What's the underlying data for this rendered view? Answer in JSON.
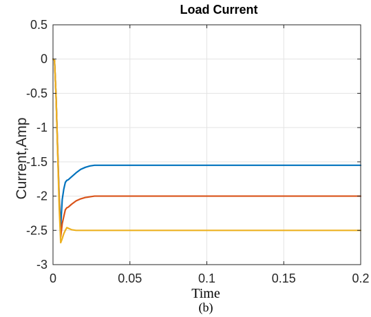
{
  "chart_data": {
    "type": "line",
    "title": "Load Current",
    "xlabel": "Time",
    "ylabel": "Current,Amp",
    "caption": "(b)",
    "xlim": [
      0,
      0.2
    ],
    "ylim": [
      -3,
      0.5
    ],
    "xticks": [
      0,
      0.05,
      0.1,
      0.15,
      0.2
    ],
    "xtick_labels": [
      "0",
      "0.05",
      "0.1",
      "0.15",
      "0.2"
    ],
    "yticks": [
      0.5,
      0,
      -0.5,
      -1,
      -1.5,
      -2,
      -2.5,
      -3
    ],
    "ytick_labels": [
      "0.5",
      "0",
      "-0.5",
      "-1",
      "-1.5",
      "-2",
      "-2.5",
      "-3"
    ],
    "grid": true,
    "series": [
      {
        "color": "#0072BD",
        "x": [
          0,
          0.001,
          0.002,
          0.003,
          0.004,
          0.005,
          0.006,
          0.007,
          0.008,
          0.009,
          0.01,
          0.012,
          0.015,
          0.018,
          0.021,
          0.024,
          0.027,
          0.03,
          0.05,
          0.1,
          0.15,
          0.2
        ],
        "y": [
          0,
          -0.02,
          -0.55,
          -1.3,
          -2.0,
          -2.45,
          -2.05,
          -1.9,
          -1.8,
          -1.77,
          -1.76,
          -1.72,
          -1.66,
          -1.61,
          -1.58,
          -1.56,
          -1.55,
          -1.55,
          -1.55,
          -1.55,
          -1.55,
          -1.55
        ]
      },
      {
        "color": "#D95319",
        "x": [
          0,
          0.001,
          0.002,
          0.003,
          0.004,
          0.005,
          0.006,
          0.007,
          0.008,
          0.009,
          0.01,
          0.012,
          0.015,
          0.018,
          0.021,
          0.024,
          0.027,
          0.03,
          0.05,
          0.1,
          0.15,
          0.2
        ],
        "y": [
          0,
          -0.02,
          -0.55,
          -1.3,
          -2.05,
          -2.6,
          -2.4,
          -2.3,
          -2.2,
          -2.17,
          -2.16,
          -2.12,
          -2.07,
          -2.04,
          -2.02,
          -2.01,
          -2.0,
          -2.0,
          -2.0,
          -2.0,
          -2.0,
          -2.0
        ]
      },
      {
        "color": "#EDB120",
        "x": [
          0,
          0.001,
          0.002,
          0.003,
          0.004,
          0.005,
          0.006,
          0.007,
          0.008,
          0.009,
          0.01,
          0.012,
          0.015,
          0.02,
          0.05,
          0.1,
          0.15,
          0.2
        ],
        "y": [
          0,
          -0.02,
          -0.55,
          -1.35,
          -2.15,
          -2.68,
          -2.62,
          -2.55,
          -2.5,
          -2.46,
          -2.47,
          -2.49,
          -2.5,
          -2.5,
          -2.5,
          -2.5,
          -2.5,
          -2.5
        ]
      }
    ]
  }
}
